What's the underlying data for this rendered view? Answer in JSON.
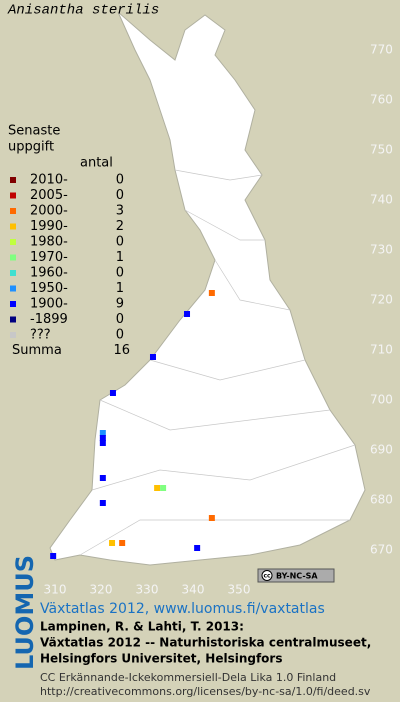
{
  "title": "Anisantha sterilis",
  "legend": {
    "heading": [
      "Senaste",
      "uppgift"
    ],
    "count_label": "antal",
    "rows": [
      {
        "label": "2010-",
        "color": "#800000",
        "count": 0,
        "points": []
      },
      {
        "label": "2005-",
        "color": "#c00000",
        "count": 0,
        "points": []
      },
      {
        "label": "2000-",
        "color": "#ff6a00",
        "count": 3,
        "points": [
          [
            344.1,
            721.4
          ],
          [
            344.1,
            676.4
          ],
          [
            324.6,
            671.4
          ]
        ]
      },
      {
        "label": "1990-",
        "color": "#ffc000",
        "count": 2,
        "points": [
          [
            322.4,
            671.4
          ],
          [
            332.2,
            682.4
          ]
        ]
      },
      {
        "label": "1980-",
        "color": "#c0ff40",
        "count": 0,
        "points": []
      },
      {
        "label": "1970-",
        "color": "#80ff80",
        "count": 1,
        "points": [
          [
            333.5,
            682.4
          ]
        ]
      },
      {
        "label": "1960-",
        "color": "#40e0d0",
        "count": 0,
        "points": []
      },
      {
        "label": "1950-",
        "color": "#1e90ff",
        "count": 1,
        "points": [
          [
            320.4,
            693.4
          ]
        ]
      },
      {
        "label": "1900-",
        "color": "#0000ff",
        "count": 9,
        "points": [
          [
            338.7,
            717.2
          ],
          [
            331.3,
            708.6
          ],
          [
            322.6,
            701.4
          ],
          [
            320.4,
            692.4
          ],
          [
            320.4,
            691.4
          ],
          [
            320.4,
            684.4
          ],
          [
            320.4,
            679.4
          ],
          [
            340.9,
            670.4
          ],
          [
            309.6,
            668.8
          ]
        ]
      },
      {
        "label": "-1899",
        "color": "#000080",
        "count": 0,
        "points": []
      },
      {
        "label": "???",
        "color": "#c8c8c8",
        "count": 0,
        "points": []
      }
    ],
    "total_label": "Summa",
    "total": 16
  },
  "grid": {
    "x_labels": [
      310,
      320,
      330,
      340,
      350
    ],
    "y_labels": [
      670,
      680,
      690,
      700,
      710,
      720,
      730,
      740,
      750,
      760,
      770
    ]
  },
  "badge": {
    "icon": "cc",
    "text": "BY-NC-SA"
  },
  "footer": {
    "logo": "LUOMUS",
    "link": "Växtatlas 2012, www.luomus.fi/vaxtatlas",
    "citation": [
      "Lampinen, R. & Lahti, T. 2013:",
      "Växtatlas 2012 -- Naturhistoriska centralmuseet,",
      "Helsingfors Universitet, Helsingfors"
    ],
    "license": [
      "CC Erkännande-Ickekommersiell-Dela Lika 1.0 Finland",
      "http://creativecommons.org/licenses/by-nc-sa/1.0/fi/deed.sv"
    ]
  }
}
